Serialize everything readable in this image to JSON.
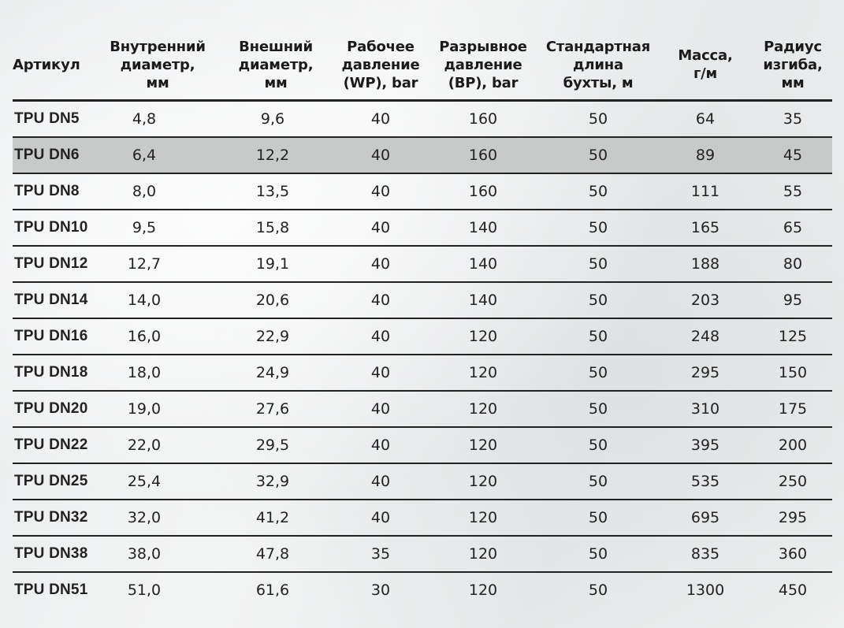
{
  "table": {
    "headers": [
      {
        "key": "article",
        "label": "Артикул"
      },
      {
        "key": "inner_diameter",
        "label": "Внутренний диаметр, мм"
      },
      {
        "key": "outer_diameter",
        "label": "Внешний диаметр, мм"
      },
      {
        "key": "working_pressure",
        "label": "Рабочее давление (WP), bar"
      },
      {
        "key": "burst_pressure",
        "label": "Разрывное давление (BP), bar"
      },
      {
        "key": "standard_coil_length",
        "label": "Стандартная длина бухты, м"
      },
      {
        "key": "mass",
        "label": "Масса, г/м"
      },
      {
        "key": "bend_radius",
        "label": "Радиус изгиба, мм"
      }
    ],
    "header_lines": [
      [
        "Артикул"
      ],
      [
        "Внутренний",
        "диаметр,",
        "мм"
      ],
      [
        "Внешний",
        "диаметр,",
        "мм"
      ],
      [
        "Рабочее",
        "давление",
        "(WP), bar"
      ],
      [
        "Разрывное",
        "давление",
        "(BP), bar"
      ],
      [
        "Стандартная",
        "длина",
        "бухты, м"
      ],
      [
        "Масса,",
        "г/м"
      ],
      [
        "Радиус",
        "изгиба,",
        "мм"
      ]
    ],
    "highlighted_row_index": 1,
    "highlight_color": "#c8c9c9",
    "rows": [
      [
        "TPU DN5",
        "4,8",
        "9,6",
        "40",
        "160",
        "50",
        "64",
        "35"
      ],
      [
        "TPU DN6",
        "6,4",
        "12,2",
        "40",
        "160",
        "50",
        "89",
        "45"
      ],
      [
        "TPU DN8",
        "8,0",
        "13,5",
        "40",
        "160",
        "50",
        "111",
        "55"
      ],
      [
        "TPU DN10",
        "9,5",
        "15,8",
        "40",
        "140",
        "50",
        "165",
        "65"
      ],
      [
        "TPU DN12",
        "12,7",
        "19,1",
        "40",
        "140",
        "50",
        "188",
        "80"
      ],
      [
        "TPU DN14",
        "14,0",
        "20,6",
        "40",
        "140",
        "50",
        "203",
        "95"
      ],
      [
        "TPU DN16",
        "16,0",
        "22,9",
        "40",
        "120",
        "50",
        "248",
        "125"
      ],
      [
        "TPU DN18",
        "18,0",
        "24,9",
        "40",
        "120",
        "50",
        "295",
        "150"
      ],
      [
        "TPU DN20",
        "19,0",
        "27,6",
        "40",
        "120",
        "50",
        "310",
        "175"
      ],
      [
        "TPU DN22",
        "22,0",
        "29,5",
        "40",
        "120",
        "50",
        "395",
        "200"
      ],
      [
        "TPU DN25",
        "25,4",
        "32,9",
        "40",
        "120",
        "50",
        "535",
        "250"
      ],
      [
        "TPU DN32",
        "32,0",
        "41,2",
        "40",
        "120",
        "50",
        "695",
        "295"
      ],
      [
        "TPU DN38",
        "38,0",
        "47,8",
        "35",
        "120",
        "50",
        "835",
        "360"
      ],
      [
        "TPU DN51",
        "51,0",
        "61,6",
        "30",
        "120",
        "50",
        "1300",
        "450"
      ]
    ]
  }
}
